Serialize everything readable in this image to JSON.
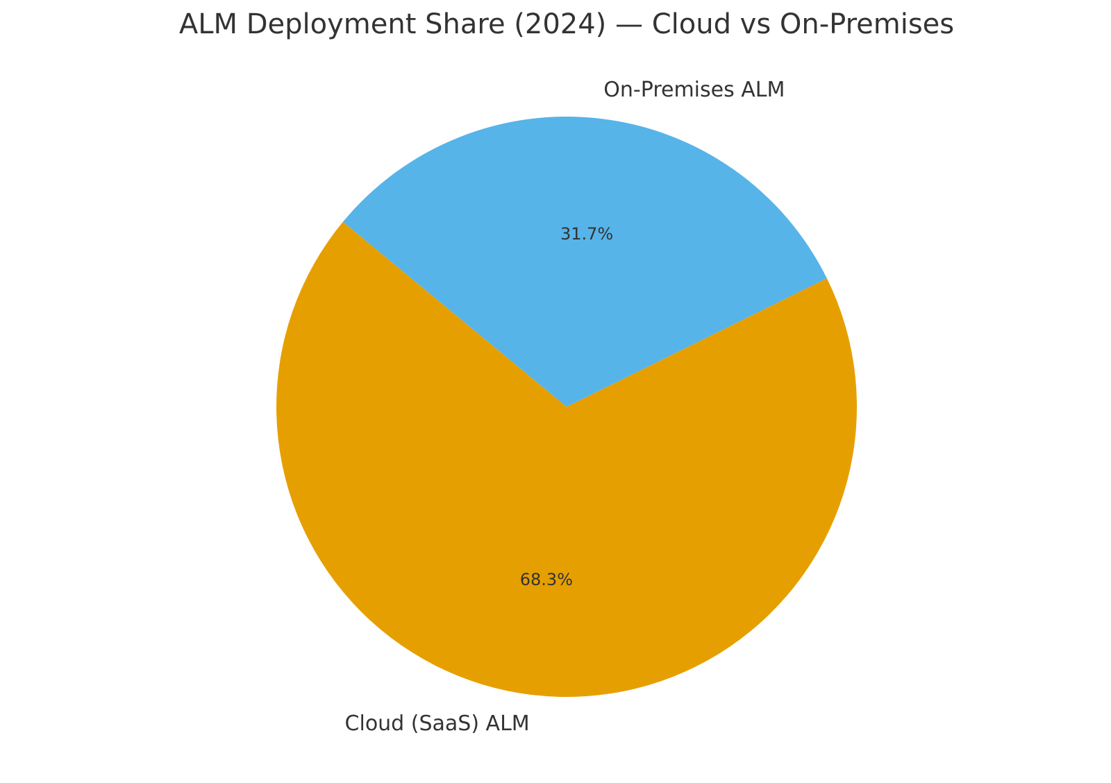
{
  "chart_data": {
    "type": "pie",
    "title": "ALM Deployment Share (2024) — Cloud vs On-Premises",
    "slices": [
      {
        "label": "Cloud (SaaS) ALM",
        "value": 68.3,
        "pct_label": "68.3%",
        "color": "#E69F00"
      },
      {
        "label": "On-Premises ALM",
        "value": 31.7,
        "pct_label": "31.7%",
        "color": "#56B4E9"
      }
    ]
  }
}
